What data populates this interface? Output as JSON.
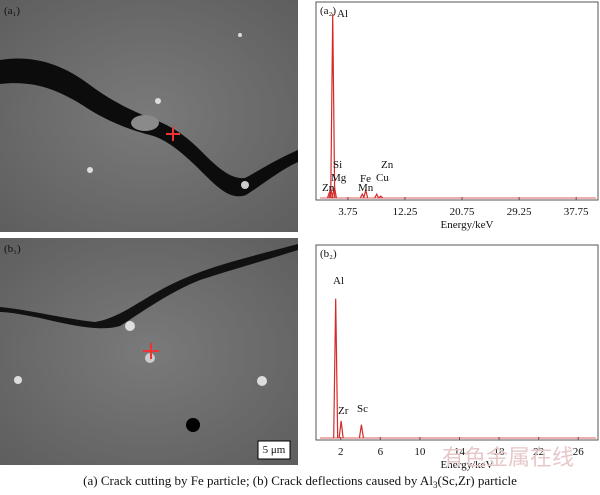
{
  "panels": {
    "a1": "(a₁)",
    "b1": "(b₁)",
    "scale_bar": "5 μm"
  },
  "chart_data": [
    {
      "type": "spectrum",
      "panel": "(a₂)",
      "xlabel": "Energy/keV",
      "xlim": [
        -1,
        41
      ],
      "xticks": [
        3.75,
        12.25,
        20.75,
        29.25,
        37.75
      ],
      "ylim": [
        0,
        100
      ],
      "color": "#d42a2a",
      "peaks": [
        {
          "label": "Al",
          "energy": 1.49,
          "height": 96
        },
        {
          "label": "Si",
          "energy": 1.74,
          "height": 7
        },
        {
          "label": "Mg",
          "energy": 1.25,
          "height": 5
        },
        {
          "label": "Zn",
          "energy": 1.01,
          "height": 4
        },
        {
          "label": "Fe",
          "energy": 6.4,
          "height": 5
        },
        {
          "label": "Mn",
          "energy": 5.9,
          "height": 3
        },
        {
          "label": "Zn",
          "energy": 8.64,
          "height": 2
        },
        {
          "label": "Cu",
          "energy": 8.04,
          "height": 3
        }
      ]
    },
    {
      "type": "spectrum",
      "panel": "(b₂)",
      "xlabel": "Energy/keV",
      "xlim": [
        -0.5,
        28
      ],
      "xticks": [
        2,
        6,
        10,
        14,
        18,
        22,
        26
      ],
      "ylim": [
        0,
        100
      ],
      "color": "#d42a2a",
      "peaks": [
        {
          "label": "Al",
          "energy": 1.49,
          "height": 74
        },
        {
          "label": "Zr",
          "energy": 2.04,
          "height": 10
        },
        {
          "label": "Sc",
          "energy": 4.09,
          "height": 8
        }
      ]
    }
  ],
  "caption": {
    "before": "(a) Crack cutting by Fe particle; (b) Crack deflections caused by Al",
    "subscript": "3",
    "after": "(Sc,Zr) particle"
  },
  "watermark": "有色金属在线"
}
